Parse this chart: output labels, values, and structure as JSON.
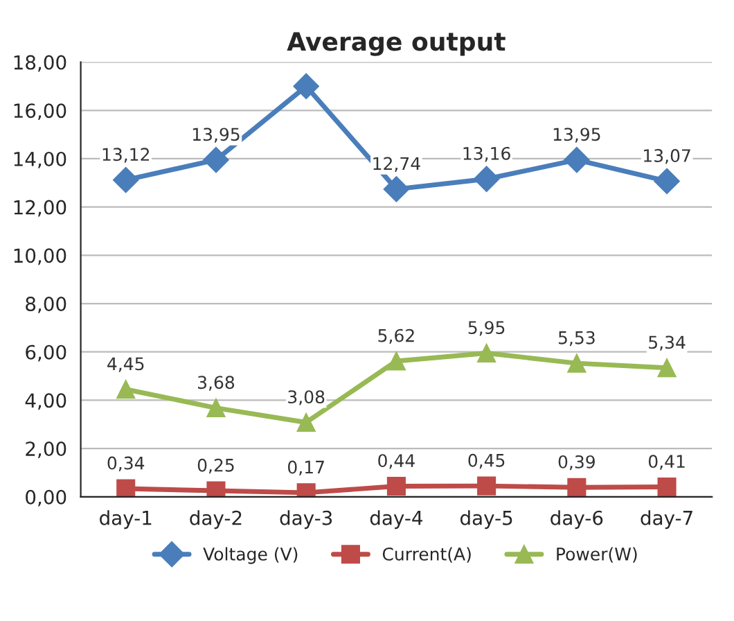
{
  "chart_data": {
    "type": "line",
    "title": "Average output",
    "categories": [
      "day-1",
      "day-2",
      "day-3",
      "day-4",
      "day-5",
      "day-6",
      "day-7"
    ],
    "series": [
      {
        "name": "Voltage (V)",
        "color": "#4a7ebb",
        "marker": "diamond",
        "values": [
          13.12,
          13.95,
          17.0,
          12.74,
          13.16,
          13.95,
          13.07
        ],
        "value_labels": [
          "13,12",
          "13,95",
          null,
          "12,74",
          "13,16",
          "13,95",
          "13,07"
        ]
      },
      {
        "name": "Current(A)",
        "color": "#be4b48",
        "marker": "square",
        "values": [
          0.34,
          0.25,
          0.17,
          0.44,
          0.45,
          0.39,
          0.41
        ],
        "value_labels": [
          "0,34",
          "0,25",
          "0,17",
          "0,44",
          "0,45",
          "0,39",
          "0,41"
        ]
      },
      {
        "name": "Power(W)",
        "color": "#98b954",
        "marker": "triangle",
        "values": [
          4.45,
          3.68,
          3.08,
          5.62,
          5.95,
          5.53,
          5.34
        ],
        "value_labels": [
          "4,45",
          "3,68",
          "3,08",
          "5,62",
          "5,95",
          "5,53",
          "5,34"
        ]
      }
    ],
    "ylim": [
      0,
      18
    ],
    "yticks": [
      {
        "value": 0,
        "label": "0,00"
      },
      {
        "value": 2,
        "label": "2,00"
      },
      {
        "value": 4,
        "label": "4,00"
      },
      {
        "value": 6,
        "label": "6,00"
      },
      {
        "value": 8,
        "label": "8,00"
      },
      {
        "value": 10,
        "label": "10,00"
      },
      {
        "value": 12,
        "label": "12,00"
      },
      {
        "value": 14,
        "label": "14,00"
      },
      {
        "value": 16,
        "label": "16,00"
      },
      {
        "value": 18,
        "label": "18,00"
      }
    ],
    "grid": "y",
    "legend": "bottom"
  }
}
